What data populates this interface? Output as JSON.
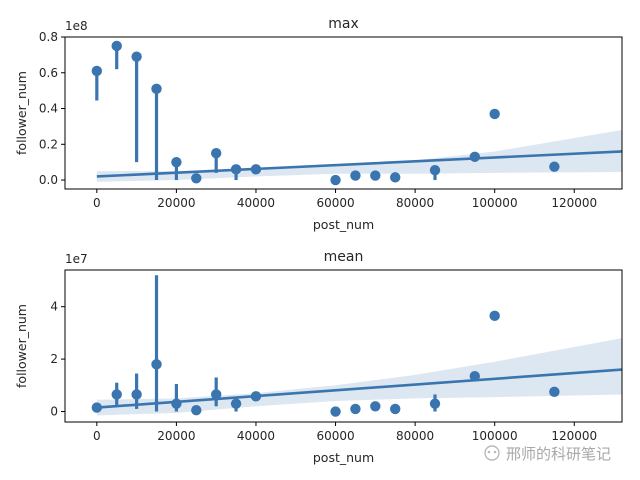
{
  "charts": [
    {
      "type": "scatter",
      "title": "max",
      "xlabel": "post_num",
      "ylabel": "follower_num",
      "offset_label": "1e8",
      "xlim": [
        -8000,
        132000
      ],
      "ylim": [
        -0.05,
        0.8
      ],
      "xticks": [
        0,
        20000,
        40000,
        60000,
        80000,
        100000,
        120000
      ],
      "yticks": [
        0.0,
        0.2,
        0.4,
        0.6,
        0.8
      ],
      "ytick_labels": [
        "0.0",
        "0.2",
        "0.4",
        "0.6",
        "0.8"
      ],
      "points": [
        {
          "x": 0,
          "y": 0.61,
          "lo": 0.445,
          "hi": 0.61
        },
        {
          "x": 5000,
          "y": 0.75,
          "lo": 0.62,
          "hi": 0.75
        },
        {
          "x": 10000,
          "y": 0.69,
          "lo": 0.1,
          "hi": 0.69
        },
        {
          "x": 15000,
          "y": 0.51,
          "lo": 0.0,
          "hi": 0.51
        },
        {
          "x": 20000,
          "y": 0.1,
          "lo": 0.0,
          "hi": 0.1
        },
        {
          "x": 25000,
          "y": 0.01,
          "lo": 0.01,
          "hi": 0.01
        },
        {
          "x": 30000,
          "y": 0.15,
          "lo": 0.04,
          "hi": 0.15
        },
        {
          "x": 35000,
          "y": 0.06,
          "lo": 0.0,
          "hi": 0.06
        },
        {
          "x": 40000,
          "y": 0.06,
          "lo": 0.06,
          "hi": 0.06
        },
        {
          "x": 60000,
          "y": 0.0,
          "lo": 0.0,
          "hi": 0.0
        },
        {
          "x": 65000,
          "y": 0.025,
          "lo": 0.025,
          "hi": 0.025
        },
        {
          "x": 70000,
          "y": 0.025,
          "lo": 0.025,
          "hi": 0.025
        },
        {
          "x": 75000,
          "y": 0.015,
          "lo": 0.015,
          "hi": 0.015
        },
        {
          "x": 85000,
          "y": 0.055,
          "lo": 0.0,
          "hi": 0.055
        },
        {
          "x": 95000,
          "y": 0.13,
          "lo": 0.13,
          "hi": 0.13
        },
        {
          "x": 100000,
          "y": 0.37,
          "lo": 0.37,
          "hi": 0.37
        },
        {
          "x": 115000,
          "y": 0.075,
          "lo": 0.075,
          "hi": 0.075
        }
      ],
      "regression": {
        "x": [
          0,
          132000
        ],
        "y": [
          0.02,
          0.16
        ]
      },
      "ci_band": {
        "x": [
          0,
          20000,
          40000,
          60000,
          80000,
          100000,
          132000
        ],
        "upper": [
          0.05,
          0.05,
          0.06,
          0.08,
          0.11,
          0.16,
          0.28
        ],
        "lower": [
          -0.01,
          0.0,
          0.02,
          0.035,
          0.035,
          0.04,
          0.045
        ]
      }
    },
    {
      "type": "scatter",
      "title": "mean",
      "xlabel": "post_num",
      "ylabel": "follower_num",
      "offset_label": "1e7",
      "xlim": [
        -8000,
        132000
      ],
      "ylim": [
        -0.4,
        5.4
      ],
      "xticks": [
        0,
        20000,
        40000,
        60000,
        80000,
        100000,
        120000
      ],
      "yticks": [
        0,
        2,
        4
      ],
      "ytick_labels": [
        "0",
        "2",
        "4"
      ],
      "points": [
        {
          "x": 0,
          "y": 0.15,
          "lo": 0.15,
          "hi": 0.15
        },
        {
          "x": 5000,
          "y": 0.65,
          "lo": 0.25,
          "hi": 1.1
        },
        {
          "x": 10000,
          "y": 0.65,
          "lo": 0.1,
          "hi": 1.45
        },
        {
          "x": 15000,
          "y": 1.8,
          "lo": 0.0,
          "hi": 5.2
        },
        {
          "x": 20000,
          "y": 0.3,
          "lo": 0.0,
          "hi": 1.05
        },
        {
          "x": 25000,
          "y": 0.05,
          "lo": 0.05,
          "hi": 0.05
        },
        {
          "x": 30000,
          "y": 0.65,
          "lo": 0.2,
          "hi": 1.3
        },
        {
          "x": 35000,
          "y": 0.3,
          "lo": 0.0,
          "hi": 0.55
        },
        {
          "x": 40000,
          "y": 0.58,
          "lo": 0.58,
          "hi": 0.58
        },
        {
          "x": 60000,
          "y": 0.0,
          "lo": 0.0,
          "hi": 0.0
        },
        {
          "x": 65000,
          "y": 0.1,
          "lo": 0.1,
          "hi": 0.1
        },
        {
          "x": 70000,
          "y": 0.2,
          "lo": 0.2,
          "hi": 0.2
        },
        {
          "x": 75000,
          "y": 0.1,
          "lo": 0.1,
          "hi": 0.1
        },
        {
          "x": 85000,
          "y": 0.3,
          "lo": 0.0,
          "hi": 0.65
        },
        {
          "x": 95000,
          "y": 1.35,
          "lo": 1.35,
          "hi": 1.35
        },
        {
          "x": 100000,
          "y": 3.65,
          "lo": 3.65,
          "hi": 3.65
        },
        {
          "x": 115000,
          "y": 0.75,
          "lo": 0.75,
          "hi": 0.75
        }
      ],
      "regression": {
        "x": [
          0,
          132000
        ],
        "y": [
          0.15,
          1.6
        ]
      },
      "ci_band": {
        "x": [
          0,
          20000,
          40000,
          60000,
          80000,
          100000,
          132000
        ],
        "upper": [
          0.45,
          0.5,
          0.7,
          1.0,
          1.4,
          1.9,
          2.8
        ],
        "lower": [
          -0.15,
          -0.05,
          0.2,
          0.4,
          0.5,
          0.55,
          0.65
        ]
      }
    }
  ],
  "watermark": "邢师的科研笔记",
  "colors": {
    "series": "#3a75af",
    "band": "#dde7f1",
    "axis": "#000000",
    "text": "#262626"
  }
}
